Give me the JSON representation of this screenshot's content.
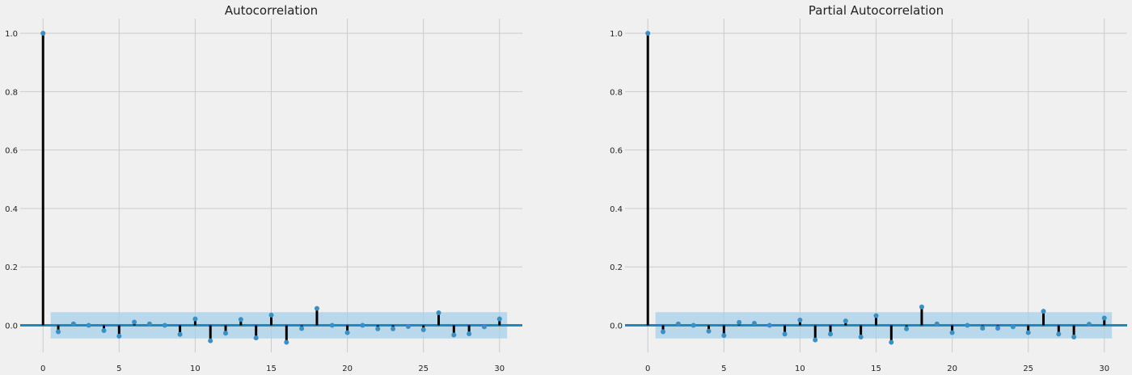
{
  "chart_data": [
    {
      "type": "stem",
      "title": "Autocorrelation",
      "xlabel": "",
      "ylabel": "",
      "xlim": [
        -1.5,
        31.5
      ],
      "ylim": [
        -0.0926,
        1.05
      ],
      "xticks": [
        0,
        5,
        10,
        15,
        20,
        25,
        30
      ],
      "yticks": [
        0.0,
        0.2,
        0.4,
        0.6,
        0.8,
        1.0
      ],
      "x": [
        0,
        1,
        2,
        3,
        4,
        5,
        6,
        7,
        8,
        9,
        10,
        11,
        12,
        13,
        14,
        15,
        16,
        17,
        18,
        19,
        20,
        21,
        22,
        23,
        24,
        25,
        26,
        27,
        28,
        29,
        30
      ],
      "values": [
        1.0,
        -0.022,
        0.005,
        0.0,
        -0.018,
        -0.037,
        0.011,
        0.005,
        0.0,
        -0.031,
        0.022,
        -0.053,
        -0.027,
        0.02,
        -0.043,
        0.035,
        -0.058,
        -0.011,
        0.058,
        0.0,
        -0.025,
        0.0,
        -0.012,
        -0.012,
        -0.004,
        -0.015,
        0.043,
        -0.033,
        -0.029,
        -0.005,
        0.022
      ],
      "confidence_band": [
        -0.045,
        0.045
      ],
      "grid": true,
      "colors": {
        "stem": "#000000",
        "marker": "#3a8fc4",
        "band": "#a8d0ea",
        "baseline": "#1f87c2"
      }
    },
    {
      "type": "stem",
      "title": "Partial Autocorrelation",
      "xlabel": "",
      "ylabel": "",
      "xlim": [
        -1.5,
        31.5
      ],
      "ylim": [
        -0.0926,
        1.05
      ],
      "xticks": [
        0,
        5,
        10,
        15,
        20,
        25,
        30
      ],
      "yticks": [
        0.0,
        0.2,
        0.4,
        0.6,
        0.8,
        1.0
      ],
      "x": [
        0,
        1,
        2,
        3,
        4,
        5,
        6,
        7,
        8,
        9,
        10,
        11,
        12,
        13,
        14,
        15,
        16,
        17,
        18,
        19,
        20,
        21,
        22,
        23,
        24,
        25,
        26,
        27,
        28,
        29,
        30
      ],
      "values": [
        1.0,
        -0.022,
        0.005,
        0.0,
        -0.02,
        -0.035,
        0.01,
        0.007,
        0.0,
        -0.03,
        0.018,
        -0.05,
        -0.03,
        0.015,
        -0.04,
        0.033,
        -0.058,
        -0.012,
        0.063,
        0.005,
        -0.025,
        0.0,
        -0.01,
        -0.01,
        -0.005,
        -0.025,
        0.048,
        -0.03,
        -0.04,
        0.004,
        0.025
      ],
      "confidence_band": [
        -0.045,
        0.045
      ],
      "grid": true,
      "colors": {
        "stem": "#000000",
        "marker": "#3a8fc4",
        "band": "#a8d0ea",
        "baseline": "#1f87c2"
      }
    }
  ]
}
